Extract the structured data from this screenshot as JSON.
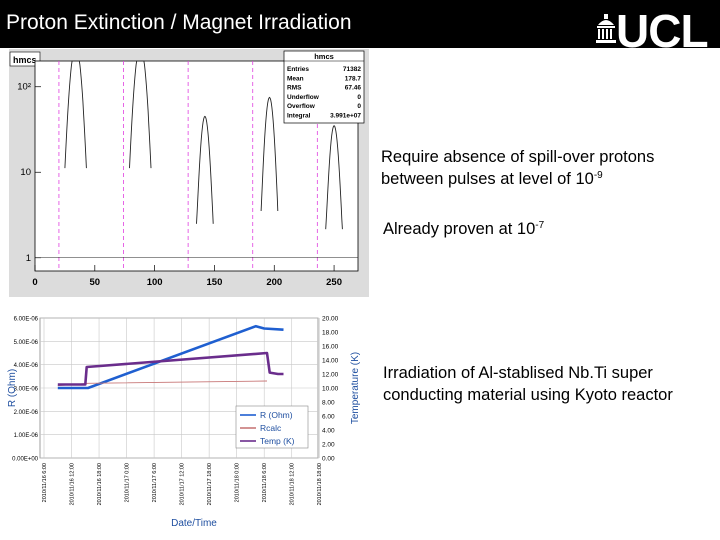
{
  "header": {
    "title": "Proton Extinction / Magnet Irradiation",
    "logo_text": "UCL"
  },
  "bullets": {
    "b1": {
      "line1": "Require absence of spill-over protons",
      "line2_pre": "between pulses at level of 10",
      "line2_sup": "-9"
    },
    "b2": {
      "pre": "Already proven at 10",
      "sup": "-7"
    },
    "b3": {
      "line1": "Irradiation of Al-stablised Nb.Ti super",
      "line2": "conducting material using Kyoto reactor"
    }
  },
  "colors": {
    "header_bg": "#000000",
    "plot_bg": "#dcdcdc",
    "r_series": "#1f5fd0",
    "temp_series": "#6a2d8c",
    "rcalc_series": "#c87878"
  },
  "histogram": {
    "tag": "hmcs",
    "stats": {
      "title": "hmcs",
      "rows": [
        {
          "key": "Entries",
          "value": "71382"
        },
        {
          "key": "Mean",
          "value": "178.7"
        },
        {
          "key": "RMS",
          "value": "67.46"
        },
        {
          "key": "Underflow",
          "value": "0"
        },
        {
          "key": "Overflow",
          "value": "0"
        },
        {
          "key": "Integral",
          "value": "3.991e+07"
        }
      ]
    }
  },
  "chart_data": [
    {
      "type": "bar",
      "title": "hmcs",
      "x_ticks": [
        0,
        50,
        100,
        150,
        200,
        250
      ],
      "y_ticks": [
        "1",
        "10",
        "10²"
      ],
      "xlim": [
        0,
        270
      ],
      "ylim_log": [
        0.7,
        200
      ],
      "log_y": true,
      "grid": false,
      "peaks": [
        {
          "center": 34,
          "height": 300,
          "width": 9
        },
        {
          "center": 88,
          "height": 300,
          "width": 9
        },
        {
          "center": 142,
          "height": 45,
          "width": 7
        },
        {
          "center": 196,
          "height": 75,
          "width": 7
        },
        {
          "center": 250,
          "height": 35,
          "width": 7
        }
      ],
      "dashed_lines": [
        20,
        74,
        128,
        182,
        236
      ]
    },
    {
      "type": "line",
      "x_labels": [
        "2010/11/16 6:00",
        "2010/11/16 12:00",
        "2010/11/16 18:00",
        "2010/11/17 0:00",
        "2010/11/17 6:00",
        "2010/11/17 12:00",
        "2010/11/17 18:00",
        "2010/11/18 0:00",
        "2010/11/18 6:00",
        "2010/11/18 12:00",
        "2010/11/18 18:00"
      ],
      "xlabel": "Date/Time",
      "ylabel_left": "R (Ohm)",
      "ylabel_right": "Temperature (K)",
      "yleft_ticks": [
        "0.00E+00",
        "1.00E-06",
        "2.00E-06",
        "3.00E-06",
        "4.00E-06",
        "5.00E-06",
        "6.00E-06"
      ],
      "yright_ticks": [
        "0.00",
        "2.00",
        "4.00",
        "6.00",
        "8.00",
        "10.00",
        "12.00",
        "14.00",
        "16.00",
        "18.00",
        "20.00"
      ],
      "yleft_lim": [
        0,
        6.0
      ],
      "yright_lim": [
        0,
        20
      ],
      "grid": true,
      "legend_position": "bottom-right",
      "series": [
        {
          "name": "R (Ohm)",
          "axis": "left",
          "x": [
            0.5,
            1.6,
            7.7,
            8.0,
            8.7
          ],
          "y": [
            3.0,
            3.0,
            5.65,
            5.55,
            5.5
          ]
        },
        {
          "name": "Rcalc",
          "axis": "left",
          "x": [
            0.5,
            1.6,
            8.1
          ],
          "y": [
            3.1,
            3.2,
            3.3
          ]
        },
        {
          "name": "Temp (K)",
          "axis": "right",
          "x": [
            0.5,
            1.5,
            1.55,
            8.1,
            8.2,
            8.5,
            8.7
          ],
          "y": [
            10.5,
            10.5,
            13.0,
            15.0,
            12.2,
            12.0,
            12.0
          ]
        }
      ]
    }
  ]
}
